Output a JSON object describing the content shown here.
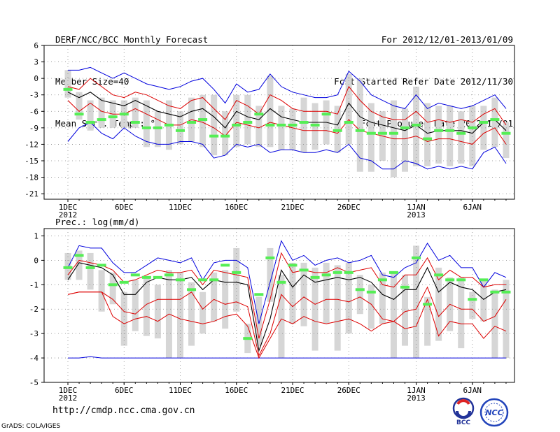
{
  "header": {
    "left": [
      "DERF/NCC/BCC Monthly Forecast",
      "Member Size=40",
      "Mean Surf. Temp.: °C"
    ],
    "right": [
      "For 2012/12/01-2013/01/09",
      "Fcst Started Refer Date 2012/11/30",
      "Fcst Produced Date 2012/12/01"
    ]
  },
  "colors": {
    "ensemble_mean": "#000000",
    "spread": "#dd0000",
    "extreme": "#0000dd",
    "observed": "#55ee55",
    "member_range": "#d6d6d6",
    "grid": "#888888"
  },
  "footer": {
    "url": "http://cmdp.ncc.cma.gov.cn",
    "credit": "GrADS: COLA/IGES",
    "logo_left": "BCC",
    "logo_right": "NCC"
  },
  "chart_data": [
    {
      "type": "line",
      "title": "Mean Surf. Temp.: °C",
      "xlabel": "",
      "ylabel": "",
      "days": 40,
      "x_ticks": [
        {
          "day": 1,
          "label": "1DEC",
          "sub": "2012"
        },
        {
          "day": 6,
          "label": "6DEC"
        },
        {
          "day": 11,
          "label": "11DEC"
        },
        {
          "day": 16,
          "label": "16DEC"
        },
        {
          "day": 21,
          "label": "21DEC"
        },
        {
          "day": 26,
          "label": "26DEC"
        },
        {
          "day": 32,
          "label": "1JAN",
          "sub": "2013"
        },
        {
          "day": 37,
          "label": "6JAN"
        }
      ],
      "ylim": [
        -22,
        6
      ],
      "y_ticks": [
        6,
        3,
        0,
        -3,
        -6,
        -9,
        -12,
        -15,
        -18,
        -21
      ],
      "series": [
        {
          "name": "max",
          "role": "extreme",
          "values": [
            1.5,
            1.5,
            2,
            1,
            0,
            1,
            0,
            -1,
            -1.5,
            -2,
            -1.5,
            -0.5,
            0,
            -2,
            -4.5,
            -1,
            -2.5,
            -2,
            0.8,
            -1.5,
            -2.5,
            -3,
            -3.5,
            -3.5,
            -3,
            1.3,
            -0.5,
            -3,
            -4,
            -5,
            -5.5,
            -3,
            -5.5,
            -4.5,
            -5,
            -5.5,
            -5,
            -4,
            -3,
            -5.5
          ]
        },
        {
          "name": "upper",
          "role": "spread",
          "values": [
            -1.5,
            -2,
            0,
            -1.5,
            -3,
            -3.5,
            -2.5,
            -3,
            -4,
            -5,
            -5.5,
            -4,
            -3.5,
            -5.5,
            -7.5,
            -4,
            -5,
            -6.5,
            -3,
            -4,
            -5.5,
            -6,
            -6,
            -6,
            -6.5,
            -1.5,
            -4,
            -6,
            -7,
            -7.5,
            -7.5,
            -6,
            -8,
            -7.5,
            -8,
            -7.5,
            -8,
            -6.5,
            -5.5,
            -8.5
          ]
        },
        {
          "name": "mean",
          "role": "mean",
          "values": [
            -2.5,
            -3.5,
            -2.5,
            -4,
            -4.5,
            -5,
            -4,
            -5,
            -6,
            -6.5,
            -7,
            -6,
            -5.5,
            -7,
            -9,
            -6,
            -7,
            -7.5,
            -5.5,
            -7,
            -7.5,
            -8,
            -8,
            -8,
            -8.5,
            -4.5,
            -7,
            -8,
            -8.5,
            -9,
            -9.5,
            -8.5,
            -10,
            -9.5,
            -9.5,
            -9.5,
            -10,
            -8,
            -7.5,
            -9.5
          ]
        },
        {
          "name": "lower",
          "role": "spread",
          "values": [
            -4,
            -6,
            -4.5,
            -6,
            -6.5,
            -6.5,
            -5.5,
            -6.5,
            -7.5,
            -8.5,
            -8.5,
            -7.5,
            -8,
            -9,
            -10.5,
            -8,
            -8.5,
            -9,
            -8,
            -8.5,
            -9,
            -9.5,
            -9.5,
            -9.5,
            -10,
            -7.5,
            -9.5,
            -10,
            -10.5,
            -11,
            -11,
            -10.5,
            -11.5,
            -11,
            -11,
            -11.5,
            -12,
            -10,
            -9,
            -12
          ]
        },
        {
          "name": "min",
          "role": "extreme",
          "values": [
            -11.5,
            -9,
            -8,
            -10,
            -11,
            -9,
            -10.5,
            -11.5,
            -12,
            -12,
            -11.5,
            -11.5,
            -12,
            -14.5,
            -14,
            -12,
            -12.5,
            -12,
            -13.5,
            -13,
            -13,
            -13.5,
            -13.5,
            -13,
            -13.5,
            -12,
            -14.5,
            -15,
            -16.5,
            -16.5,
            -15,
            -15.5,
            -16.5,
            -16,
            -16.5,
            -16,
            -16.5,
            -13.5,
            -12.5,
            -15.5
          ]
        },
        {
          "name": "observed",
          "role": "observed",
          "values": [
            -2,
            -6.5,
            -8,
            -7.5,
            -7,
            -6.5,
            -8,
            -9,
            -9,
            -8.5,
            -9.5,
            -8,
            -7.5,
            -10.5,
            -10.5,
            -8.5,
            -8,
            -6.5,
            -8.5,
            -8.5,
            -8.5,
            -8,
            -8.5,
            -6.5,
            -9.5,
            -8,
            -9.5,
            -10,
            -10,
            -10,
            -9,
            -8.5,
            -11,
            -9.5,
            -9.5,
            -10,
            -9,
            -8,
            -7.5,
            -10
          ]
        },
        {
          "name": "range_top",
          "role": "members_max",
          "values": [
            1.5,
            -2.5,
            -4,
            -3.5,
            -4,
            -4,
            -3.5,
            -4,
            -6,
            -4,
            -6,
            -3.5,
            -3,
            -3,
            -6,
            -3,
            -3,
            -5,
            0.5,
            -5,
            -5.5,
            -3.5,
            -4.5,
            -4,
            -5,
            0.8,
            0,
            -4.5,
            -6,
            -4,
            -5.5,
            -1.5,
            -4.5,
            -5,
            -5,
            -6,
            -5,
            -5,
            -3.5,
            -8
          ]
        },
        {
          "name": "range_bottom",
          "role": "members_min",
          "values": [
            -3.5,
            -7.5,
            -9.5,
            -9,
            -9,
            -9,
            -9,
            -12.5,
            -12.5,
            -13,
            -12,
            -11.5,
            -12.5,
            -14,
            -14,
            -12.5,
            -12,
            -12.5,
            -12.5,
            -13,
            -13,
            -13.5,
            -13,
            -12,
            -13.5,
            -12,
            -17,
            -17,
            -15,
            -18,
            -17,
            -16,
            -16,
            -15.5,
            -16,
            -15.5,
            -16,
            -13,
            -12.5,
            -14.5
          ]
        }
      ]
    },
    {
      "type": "line",
      "title": "Prec.: log(mm/d)",
      "xlabel": "",
      "ylabel": "",
      "days": 40,
      "x_ticks": [
        {
          "day": 1,
          "label": "1DEC",
          "sub": "2012"
        },
        {
          "day": 6,
          "label": "6DEC"
        },
        {
          "day": 11,
          "label": "11DEC"
        },
        {
          "day": 16,
          "label": "16DEC"
        },
        {
          "day": 21,
          "label": "21DEC"
        },
        {
          "day": 26,
          "label": "26DEC"
        },
        {
          "day": 32,
          "label": "1JAN",
          "sub": "2013"
        },
        {
          "day": 37,
          "label": "6JAN"
        }
      ],
      "ylim": [
        -5,
        1.3
      ],
      "y_ticks": [
        1,
        0,
        -1,
        -2,
        -3,
        -4,
        -5
      ],
      "series": [
        {
          "name": "max",
          "role": "extreme",
          "values": [
            -0.3,
            0.6,
            0.5,
            0.5,
            -0.1,
            -0.5,
            -0.5,
            -0.2,
            0.1,
            0,
            -0.1,
            0.1,
            -0.8,
            -0.1,
            0,
            0,
            -0.3,
            -2.6,
            -0.9,
            0.8,
            0,
            0.2,
            -0.2,
            0,
            0.1,
            -0.1,
            0,
            0.2,
            -0.6,
            -0.7,
            -0.3,
            -0.1,
            0.7,
            0,
            0.2,
            -0.3,
            -0.3,
            -1.1,
            -0.5,
            -0.7
          ]
        },
        {
          "name": "upper",
          "role": "spread",
          "values": [
            -0.6,
            0,
            -0.1,
            -0.2,
            -0.4,
            -0.9,
            -0.8,
            -0.6,
            -0.4,
            -0.5,
            -0.5,
            -0.4,
            -1,
            -0.4,
            -0.5,
            -0.6,
            -0.7,
            -3.2,
            -1.6,
            0.3,
            -0.5,
            -0.4,
            -0.5,
            -0.5,
            -0.3,
            -0.5,
            -0.4,
            -0.3,
            -1,
            -1.1,
            -0.6,
            -0.6,
            0.1,
            -0.8,
            -0.4,
            -0.7,
            -0.7,
            -1.1,
            -1,
            -1
          ]
        },
        {
          "name": "mean",
          "role": "mean",
          "values": [
            -0.8,
            -0.1,
            -0.2,
            -0.3,
            -0.6,
            -1.4,
            -1.4,
            -0.9,
            -0.7,
            -0.8,
            -0.8,
            -0.7,
            -1.2,
            -0.8,
            -0.9,
            -0.9,
            -1,
            -3.7,
            -2.4,
            -0.4,
            -1.1,
            -0.6,
            -0.9,
            -0.8,
            -0.7,
            -0.8,
            -0.7,
            -0.9,
            -1.4,
            -1.6,
            -1.2,
            -1.2,
            -0.3,
            -1.3,
            -0.9,
            -1.1,
            -1.2,
            -1.6,
            -1.3,
            -1.2
          ]
        },
        {
          "name": "lower",
          "role": "spread",
          "values": [
            -1.4,
            -1.3,
            -1.3,
            -1.3,
            -1.6,
            -2.1,
            -2.2,
            -1.8,
            -1.6,
            -1.6,
            -1.6,
            -1.3,
            -2,
            -1.6,
            -1.8,
            -1.7,
            -1.9,
            -3.9,
            -3,
            -1.4,
            -1.9,
            -1.5,
            -1.8,
            -1.6,
            -1.6,
            -1.7,
            -1.5,
            -1.8,
            -2.4,
            -2.5,
            -2.1,
            -2,
            -1.1,
            -2.3,
            -1.8,
            -2,
            -2,
            -2.5,
            -2.3,
            -1.6
          ]
        },
        {
          "name": "min",
          "role": "extreme",
          "values": [
            -4,
            -4,
            -3.95,
            -4,
            -4,
            -4,
            -4,
            -4,
            -4,
            -4,
            -4,
            -4,
            -4,
            -4,
            -4,
            -4,
            -4,
            -4,
            -4,
            -4,
            -4,
            -4,
            -4,
            -4,
            -4,
            -4,
            -4,
            -4,
            -4,
            -4,
            -4,
            -4,
            -4,
            -4,
            -4,
            -4,
            -4,
            -4,
            -4,
            -4
          ]
        },
        {
          "name": "lowest_member",
          "role": "spread",
          "values": [
            -1.4,
            -1.3,
            -1.3,
            -1.3,
            -2.3,
            -2.6,
            -2.4,
            -2.3,
            -2.5,
            -2.2,
            -2.4,
            -2.5,
            -2.6,
            -2.5,
            -2.3,
            -2.2,
            -2.7,
            -4,
            -3.2,
            -2.4,
            -2.6,
            -2.3,
            -2.5,
            -2.6,
            -2.5,
            -2.4,
            -2.6,
            -2.9,
            -2.6,
            -2.5,
            -2.8,
            -2.7,
            -1.6,
            -3.1,
            -2.5,
            -2.6,
            -2.6,
            -3.2,
            -2.7,
            -2.9
          ]
        },
        {
          "name": "observed",
          "role": "observed",
          "values": [
            -0.3,
            0.2,
            -0.3,
            -0.2,
            -1,
            -0.9,
            -0.6,
            -0.7,
            -0.7,
            -0.6,
            -0.8,
            -1.2,
            -0.8,
            -0.8,
            -0.2,
            -0.5,
            -3.2,
            -1.4,
            0.1,
            -0.9,
            -0.2,
            -0.4,
            -0.7,
            -0.6,
            -0.5,
            -0.5,
            -1.2,
            -1.3,
            -0.8,
            -0.5,
            -1.1,
            0.1,
            -1.8,
            -0.6,
            -0.8,
            -0.8,
            -1.6,
            -0.8,
            -1.3,
            -1.3
          ]
        },
        {
          "name": "range_top",
          "role": "members_max",
          "values": [
            0.3,
            0.4,
            0.3,
            -0.4,
            -0.5,
            -1.3,
            -0.8,
            -0.7,
            -1,
            -0.4,
            -0.5,
            -0.9,
            -1.3,
            -0.5,
            -0.4,
            0.5,
            -2.6,
            -1.5,
            0.5,
            -0.6,
            -0.1,
            -0.1,
            -0.3,
            -0.1,
            -0.2,
            -0.1,
            -0.6,
            -1,
            -0.5,
            -0.5,
            -0.6,
            0.6,
            -1.5,
            -0.3,
            -0.7,
            -0.7,
            -1.3,
            -0.8,
            -1.2,
            -0.8
          ]
        },
        {
          "name": "range_bottom",
          "role": "members_min",
          "values": [
            -0.8,
            -0.8,
            -1.2,
            -2.1,
            -1.8,
            -3.5,
            -2.9,
            -3.1,
            -3.2,
            -4,
            -4,
            -3.5,
            -3,
            -2.5,
            -2.8,
            -2.1,
            -3.8,
            -3.5,
            -1.7,
            -4,
            -2.6,
            -2.7,
            -3.7,
            -2.6,
            -3.7,
            -3,
            -2.2,
            -2.8,
            -2.6,
            -4,
            -3.5,
            -4,
            -3.5,
            -3.3,
            -2.9,
            -3.6,
            -2.4,
            -2.5,
            -4,
            -4
          ]
        }
      ]
    }
  ]
}
